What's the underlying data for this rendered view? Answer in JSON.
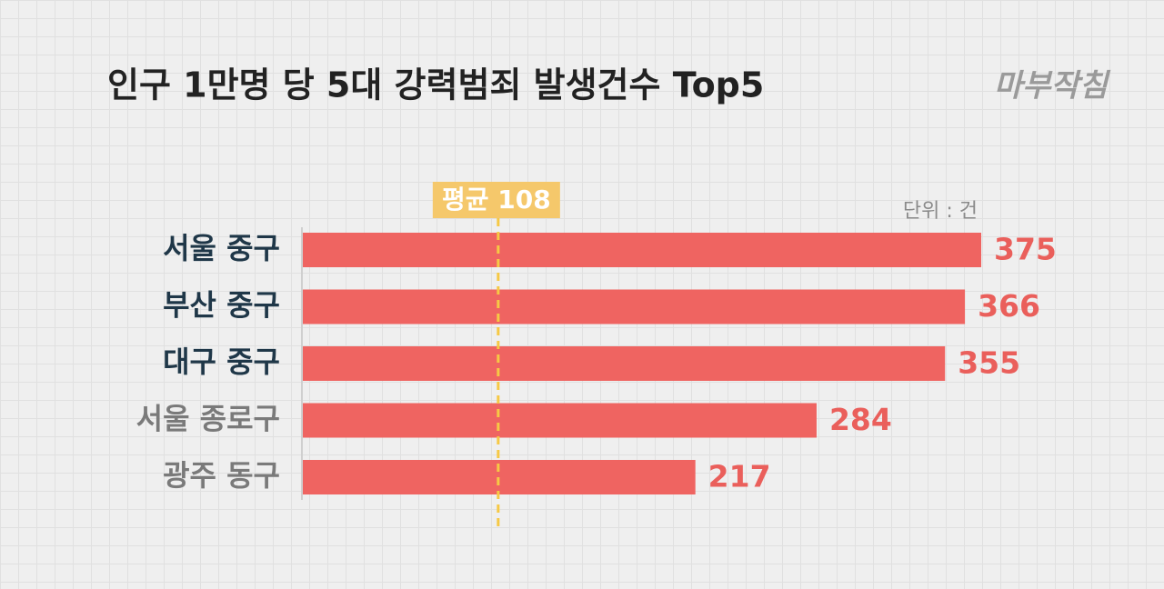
{
  "chart_data": {
    "type": "barh",
    "title": "인구 1만명 당 5대 강력범죄 발생건수 Top5",
    "logo": "마부작침",
    "unit": "단위 : 건",
    "categories": [
      "서울 중구",
      "부산 중구",
      "대구 중구",
      "서울 종로구",
      "광주 동구"
    ],
    "category_colors": [
      "#1f3748",
      "#1f3748",
      "#1f3748",
      "#7a7a7a",
      "#7a7a7a"
    ],
    "values": [
      375,
      366,
      355,
      284,
      217
    ],
    "color": "#ef6461",
    "value_label_color": "#ea5f5b",
    "average": {
      "label": "평균",
      "value": 108,
      "color": "#f6c945",
      "label_background": "#f5c86b"
    }
  }
}
